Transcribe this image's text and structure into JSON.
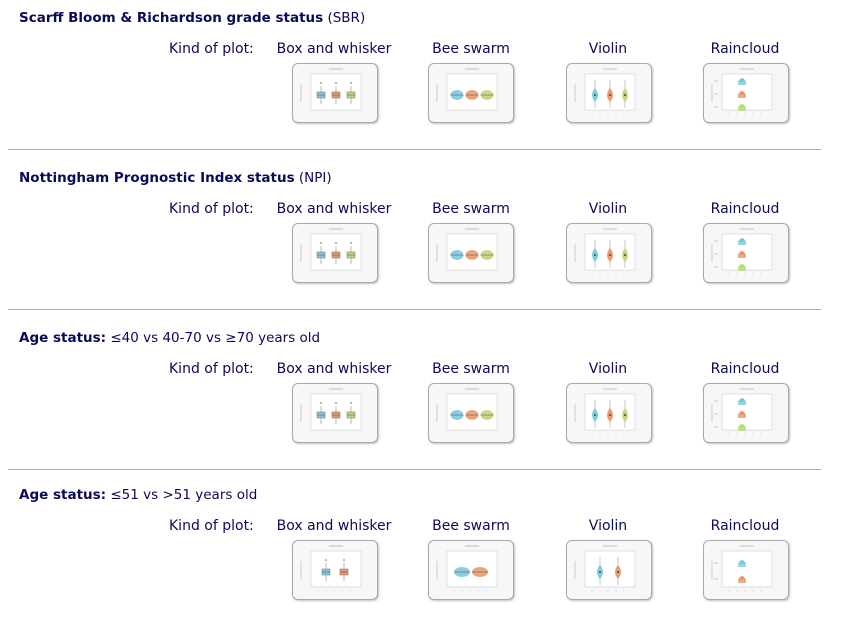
{
  "kind_label": "Kind of plot:",
  "plot_kinds": [
    "Box and whisker",
    "Bee swarm",
    "Violin",
    "Raincloud"
  ],
  "palette": {
    "blue": "#7cc8dc",
    "orange": "#e59a6c",
    "green": "#bcd67a",
    "text": "#0a0a5a",
    "border": "#a9a9a9"
  },
  "sections": [
    {
      "title_bold": "Scarff Bloom & Richardson grade status",
      "title_rest": " (SBR)",
      "groups": [
        "blue",
        "orange",
        "green"
      ]
    },
    {
      "title_bold": "Nottingham Prognostic Index status",
      "title_rest": " (NPI)",
      "groups": [
        "blue",
        "orange",
        "green"
      ]
    },
    {
      "title_bold": "Age status:",
      "title_rest": " ≤40 vs 40-70 vs ≥70 years old",
      "groups": [
        "blue",
        "orange",
        "green"
      ]
    },
    {
      "title_bold": "Age status:",
      "title_rest": " ≤51 vs >51 years old",
      "groups": [
        "blue",
        "orange"
      ]
    }
  ]
}
